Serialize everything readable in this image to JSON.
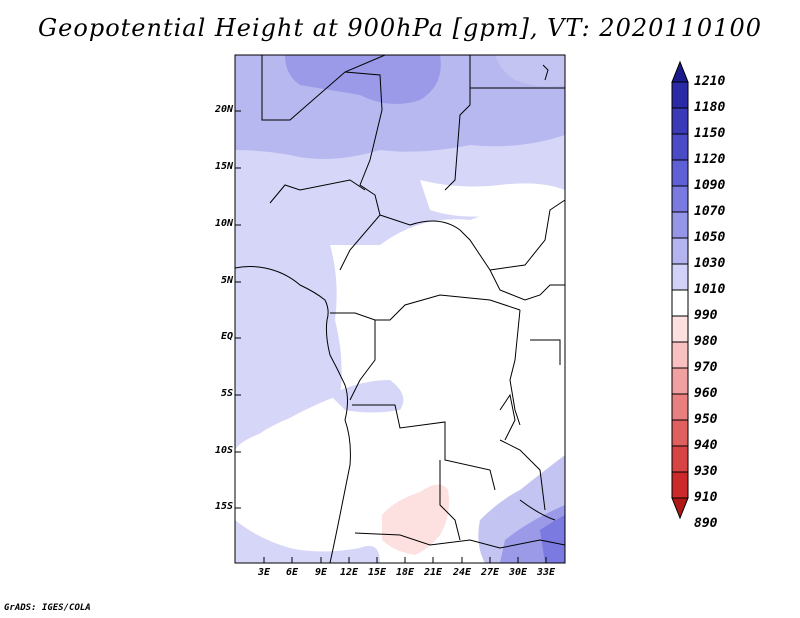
{
  "title": "Geopotential Height at 900hPa [gpm], VT: 2020110100",
  "map": {
    "lat_labels": [
      "20N",
      "15N",
      "10N",
      "5N",
      "EQ",
      "5S",
      "10S",
      "15S"
    ],
    "lon_labels": [
      "3E",
      "6E",
      "9E",
      "12E",
      "15E",
      "18E",
      "21E",
      "24E",
      "27E",
      "30E",
      "33E"
    ]
  },
  "colorbar": {
    "levels": [
      "1210",
      "1180",
      "1150",
      "1120",
      "1090",
      "1070",
      "1050",
      "1030",
      "1010",
      "990",
      "980",
      "970",
      "960",
      "950",
      "940",
      "930",
      "910",
      "890"
    ],
    "colors": [
      "#1a1a8c",
      "#2a2aa6",
      "#3a3ab8",
      "#4b4bc8",
      "#6060d6",
      "#7a7ae0",
      "#9696e8",
      "#b4b4f0",
      "#d2d2f8",
      "#ffffff",
      "#fde0e0",
      "#f8c0c0",
      "#f0a0a0",
      "#e88080",
      "#e06060",
      "#d84444",
      "#cc2a2a",
      "#b01818"
    ]
  },
  "footer": "GrADS: IGES/COLA"
}
